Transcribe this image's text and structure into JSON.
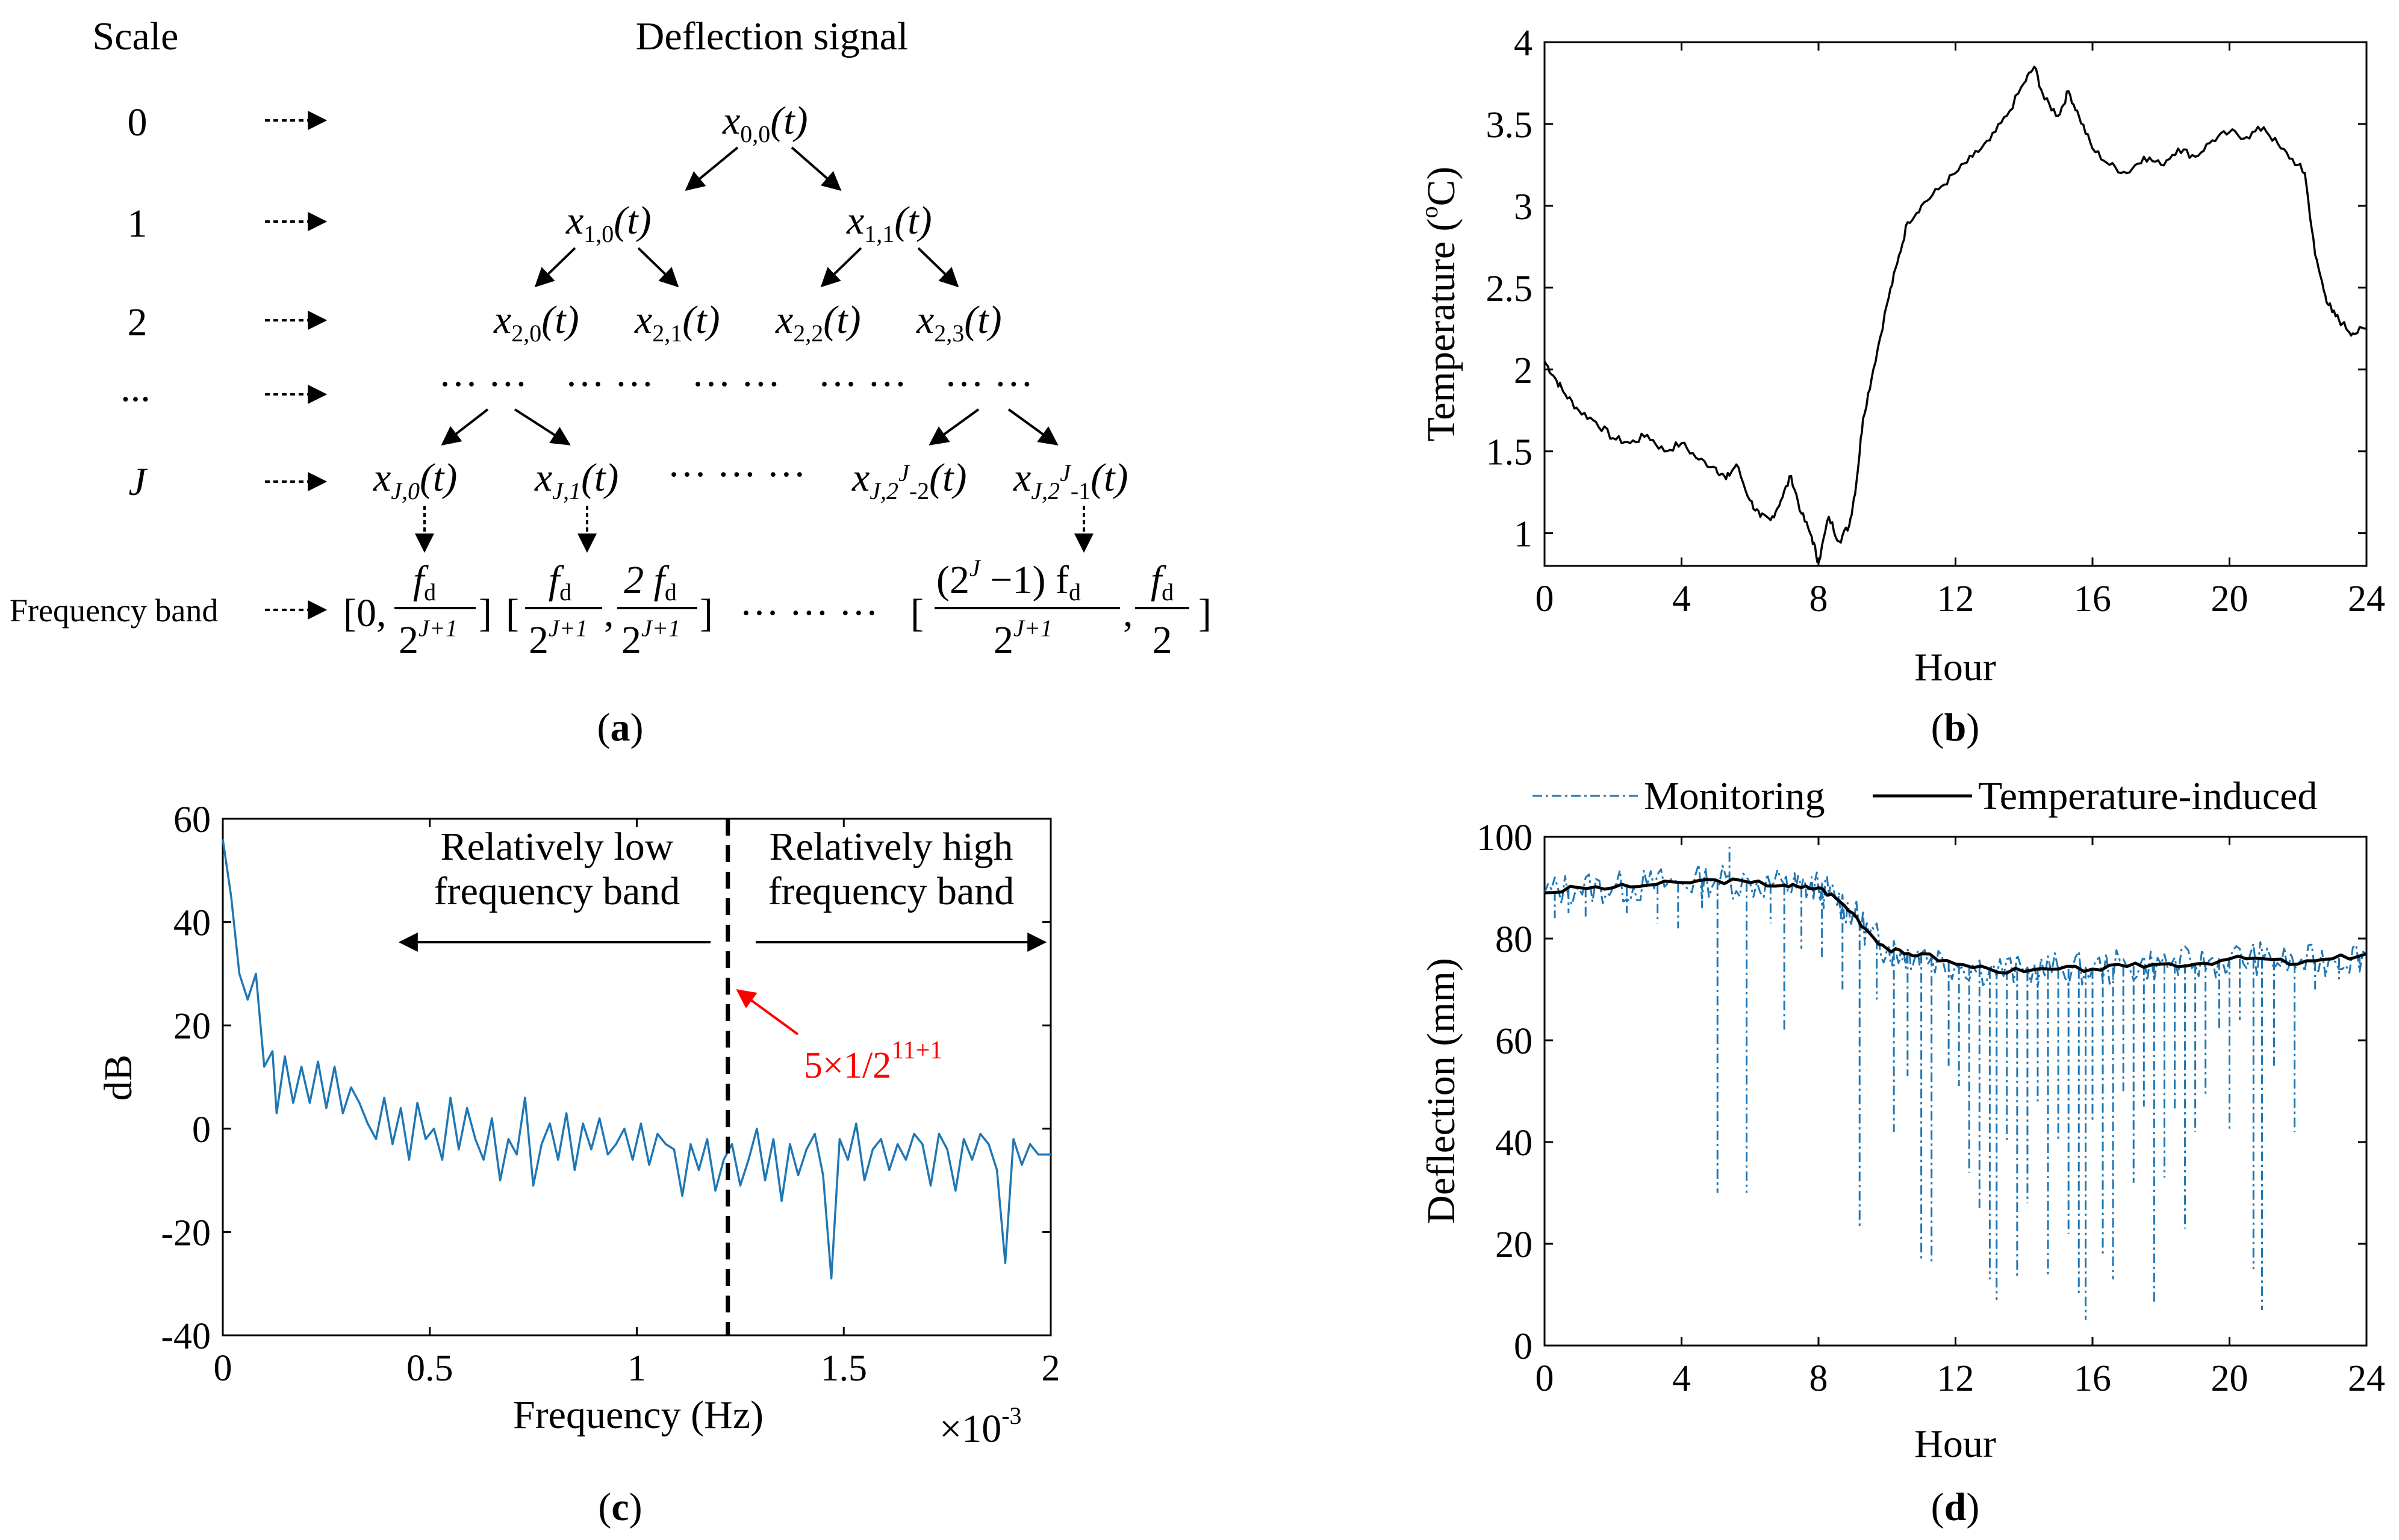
{
  "panel_a": {
    "caption": "(a)",
    "caption_letter": "a",
    "scale_header": "Scale",
    "signal_header": "Deflection signal",
    "scale_labels": [
      "0",
      "1",
      "2",
      "...",
      "J"
    ],
    "freq_band_label": "Frequency band",
    "nodes": {
      "n00": {
        "base": "x",
        "sub": "0,0",
        "arg": "(t)"
      },
      "n10": {
        "base": "x",
        "sub": "1,0",
        "arg": "(t)"
      },
      "n11": {
        "base": "x",
        "sub": "1,1",
        "arg": "(t)"
      },
      "n20": {
        "base": "x",
        "sub": "2,0",
        "arg": "(t)"
      },
      "n21": {
        "base": "x",
        "sub": "2,1",
        "arg": "(t)"
      },
      "n22": {
        "base": "x",
        "sub": "2,2",
        "arg": "(t)"
      },
      "n23": {
        "base": "x",
        "sub": "2,3",
        "arg": "(t)"
      },
      "nJ0": {
        "base": "x",
        "sub": "J,0",
        "arg": "(t)"
      },
      "nJ1": {
        "base": "x",
        "sub": "J,1",
        "arg": "(t)"
      },
      "nJ2": {
        "base": "x",
        "sub": "J,2",
        "sup": "J",
        "tail": "-2",
        "arg": "(t)"
      },
      "nJ3": {
        "base": "x",
        "sub": "J,2",
        "sup": "J",
        "tail": "-1",
        "arg": "(t)"
      }
    },
    "dots": "··· ···",
    "bands": {
      "b1_open": "[0,",
      "b1_num": "f",
      "b1_num_sub": "d",
      "b1_den": "2",
      "b1_den_sup": "J+1",
      "b1_close": "]",
      "b2_open": "[",
      "b2_num_left": "f",
      "b2_num_left_sub": "d",
      "b2_den_left": "2",
      "b2_den_left_sup": "J+1",
      "comma": ",",
      "b2_num_right": "2 f",
      "b2_num_right_sub": "d",
      "b2_den_right": "2",
      "b2_den_right_sup": "J+1",
      "b2_close": "]",
      "ellipsis": "··· ··· ···",
      "b3_open": "[",
      "b3_num": "(2",
      "b3_num_sup": "J",
      "b3_num_rest": " −1) f",
      "b3_num_sub": "d",
      "b3_den": "2",
      "b3_den_sup": "J+1",
      "b3_comma": ",",
      "b3_num2": "f",
      "b3_num2_sub": "d",
      "b3_den2": "2",
      "b3_close": "]"
    }
  },
  "chart_data": [
    {
      "id": "b",
      "type": "line",
      "caption": "(b)",
      "caption_letter": "b",
      "xlabel": "Hour",
      "ylabel": "Temperature (",
      "ylabel_sup": "o",
      "ylabel_unit": "C)",
      "xlim": [
        0,
        24
      ],
      "ylim": [
        0.8,
        4
      ],
      "xticks": [
        0,
        4,
        8,
        12,
        16,
        20,
        24
      ],
      "yticks": [
        1,
        1.5,
        2,
        2.5,
        3,
        3.5,
        4
      ],
      "ytick_labels": [
        "1",
        "1.5",
        "2",
        "2.5",
        "3",
        "3.5",
        "4"
      ],
      "series": [
        {
          "name": "Temperature",
          "color": "#000000",
          "x": [
            0,
            0.3,
            0.6,
            1,
            1.5,
            2,
            2.5,
            3,
            3.5,
            4,
            4.5,
            5,
            5.3,
            5.6,
            6,
            6.3,
            6.6,
            6.9,
            7.2,
            7.5,
            7.8,
            8,
            8.3,
            8.6,
            8.9,
            9.1,
            9.3,
            9.6,
            10,
            10.3,
            10.6,
            11,
            11.5,
            12,
            12.5,
            13,
            13.5,
            14,
            14.3,
            14.6,
            15,
            15.3,
            15.6,
            16,
            16.5,
            17,
            17.5,
            18,
            18.5,
            19,
            19.5,
            20,
            20.5,
            21,
            21.5,
            22,
            22.2,
            22.5,
            22.8,
            23,
            23.3,
            23.6,
            24
          ],
          "y": [
            2.05,
            1.95,
            1.85,
            1.75,
            1.68,
            1.58,
            1.55,
            1.6,
            1.5,
            1.55,
            1.45,
            1.4,
            1.33,
            1.42,
            1.2,
            1.1,
            1.08,
            1.2,
            1.35,
            1.12,
            0.98,
            0.82,
            1.1,
            0.95,
            1.05,
            1.3,
            1.7,
            2.0,
            2.4,
            2.65,
            2.9,
            3.0,
            3.1,
            3.2,
            3.3,
            3.4,
            3.55,
            3.75,
            3.85,
            3.65,
            3.55,
            3.7,
            3.55,
            3.35,
            3.25,
            3.2,
            3.3,
            3.25,
            3.35,
            3.3,
            3.4,
            3.45,
            3.42,
            3.48,
            3.35,
            3.25,
            3.2,
            2.7,
            2.45,
            2.35,
            2.28,
            2.22,
            2.25
          ]
        }
      ]
    },
    {
      "id": "c",
      "type": "line",
      "caption": "(c)",
      "caption_letter": "c",
      "xlabel": "Frequency (Hz)",
      "ylabel": "dB",
      "x_multiplier": "×10",
      "x_multiplier_exp": "-3",
      "xlim": [
        0,
        2
      ],
      "ylim": [
        -40,
        60
      ],
      "xticks": [
        0,
        0.5,
        1,
        1.5,
        2
      ],
      "xtick_labels": [
        "0",
        "0.5",
        "1",
        "1.5",
        "2"
      ],
      "yticks": [
        -40,
        -20,
        0,
        20,
        40,
        60
      ],
      "ytick_labels": [
        "-40",
        "-20",
        "0",
        "20",
        "40",
        "60"
      ],
      "divider_x": 1.22,
      "annotations": {
        "low_line1": "Relatively low",
        "low_line2": "frequency band",
        "high_line1": "Relatively high",
        "high_line2": "frequency band",
        "cutoff_text": "5×1/2",
        "cutoff_exp": "11+1",
        "cutoff_color": "#ff0000"
      },
      "series": [
        {
          "name": "Spectrum",
          "color": "#1f77b4",
          "x": [
            0,
            0.02,
            0.04,
            0.06,
            0.08,
            0.1,
            0.12,
            0.13,
            0.15,
            0.17,
            0.19,
            0.21,
            0.23,
            0.25,
            0.27,
            0.29,
            0.31,
            0.33,
            0.35,
            0.37,
            0.39,
            0.41,
            0.43,
            0.45,
            0.47,
            0.49,
            0.51,
            0.53,
            0.55,
            0.57,
            0.59,
            0.61,
            0.63,
            0.65,
            0.67,
            0.69,
            0.71,
            0.73,
            0.75,
            0.77,
            0.79,
            0.81,
            0.83,
            0.85,
            0.87,
            0.89,
            0.91,
            0.93,
            0.95,
            0.97,
            0.99,
            1.01,
            1.03,
            1.05,
            1.07,
            1.09,
            1.11,
            1.13,
            1.15,
            1.17,
            1.19,
            1.21,
            1.23,
            1.25,
            1.27,
            1.29,
            1.31,
            1.33,
            1.35,
            1.37,
            1.39,
            1.41,
            1.43,
            1.45,
            1.47,
            1.49,
            1.51,
            1.53,
            1.55,
            1.57,
            1.59,
            1.61,
            1.63,
            1.65,
            1.67,
            1.69,
            1.71,
            1.73,
            1.75,
            1.77,
            1.79,
            1.81,
            1.83,
            1.85,
            1.87,
            1.89,
            1.91,
            1.93,
            1.95,
            1.97,
            2.0
          ],
          "y": [
            56,
            45,
            30,
            25,
            30,
            12,
            15,
            3,
            14,
            5,
            12,
            5,
            13,
            4,
            12,
            3,
            8,
            5,
            1,
            -2,
            6,
            -3,
            4,
            -6,
            5,
            -2,
            0,
            -6,
            6,
            -4,
            4,
            -2,
            -6,
            2,
            -10,
            -2,
            -5,
            6,
            -11,
            -3,
            1,
            -6,
            3,
            -8,
            1,
            -4,
            2,
            -5,
            -3,
            0,
            -6,
            1,
            -7,
            -1,
            -3,
            -4,
            -13,
            -3,
            -8,
            -2,
            -12,
            -6,
            -3,
            -11,
            -6,
            0,
            -10,
            -2,
            -14,
            -3,
            -9,
            -4,
            -1,
            -9,
            -29,
            -2,
            -6,
            1,
            -10,
            -4,
            -2,
            -8,
            -3,
            -6,
            -1,
            -3,
            -11,
            -1,
            -4,
            -12,
            -2,
            -6,
            -1,
            -3,
            -8,
            -26,
            -2,
            -7,
            -3,
            -5,
            -5
          ]
        }
      ]
    },
    {
      "id": "d",
      "type": "line",
      "caption": "(d)",
      "caption_letter": "d",
      "xlabel": "Hour",
      "ylabel": "Deflection (mm)",
      "xlim": [
        0,
        24
      ],
      "ylim": [
        0,
        100
      ],
      "xticks": [
        0,
        4,
        8,
        12,
        16,
        20,
        24
      ],
      "yticks": [
        0,
        20,
        40,
        60,
        80,
        100
      ],
      "ytick_labels": [
        "0",
        "20",
        "40",
        "60",
        "80",
        "100"
      ],
      "legend": [
        {
          "label": "Monitoring",
          "color": "#1f77b4",
          "style": "dash-dot"
        },
        {
          "label": "Temperature-induced",
          "color": "#000000",
          "style": "solid"
        }
      ],
      "series": [
        {
          "name": "Temperature-induced",
          "color": "#000000",
          "x": [
            0,
            1,
            2,
            3,
            4,
            5,
            6,
            7,
            7.5,
            8,
            8.5,
            9,
            9.5,
            10,
            10.5,
            11,
            12,
            13,
            14,
            15,
            16,
            17,
            18,
            19,
            20,
            21,
            22,
            23,
            24
          ],
          "y": [
            89,
            90,
            90,
            90.5,
            91,
            91.5,
            91,
            90.5,
            90,
            90,
            88,
            85,
            81,
            78,
            77,
            77,
            75,
            74,
            73.5,
            74,
            74,
            74.5,
            75,
            75,
            76,
            76,
            75,
            76,
            77
          ]
        },
        {
          "name": "Monitoring",
          "color": "#1f77b4",
          "base_x": [
            0,
            1,
            2,
            3,
            4,
            5,
            6,
            7,
            7.5,
            8,
            8.5,
            9,
            9.5,
            10,
            10.5,
            11,
            12,
            13,
            14,
            15,
            16,
            17,
            18,
            19,
            20,
            21,
            22,
            23,
            24
          ],
          "base_y": [
            89,
            90,
            90,
            90.5,
            91,
            91.5,
            91,
            90.5,
            90,
            90,
            88,
            85,
            81,
            78,
            77,
            77,
            75,
            74,
            73.5,
            74,
            74,
            74.5,
            75,
            75,
            76,
            76,
            75,
            76,
            77
          ],
          "spikes": [
            [
              0.3,
              84
            ],
            [
              0.7,
              85
            ],
            [
              1.2,
              84
            ],
            [
              2.4,
              85
            ],
            [
              3.3,
              83
            ],
            [
              3.9,
              82
            ],
            [
              4.6,
              86
            ],
            [
              5.05,
              30
            ],
            [
              5.4,
              98
            ],
            [
              5.9,
              30
            ],
            [
              6.6,
              83
            ],
            [
              7.0,
              62
            ],
            [
              7.5,
              78
            ],
            [
              8.1,
              76
            ],
            [
              8.7,
              70
            ],
            [
              9.2,
              23
            ],
            [
              9.7,
              68
            ],
            [
              10.2,
              42
            ],
            [
              10.6,
              53
            ],
            [
              11.0,
              17
            ],
            [
              11.3,
              16
            ],
            [
              11.8,
              55
            ],
            [
              12.1,
              51
            ],
            [
              12.4,
              34
            ],
            [
              12.7,
              27
            ],
            [
              13.0,
              13
            ],
            [
              13.2,
              9
            ],
            [
              13.5,
              40
            ],
            [
              13.8,
              13
            ],
            [
              14.1,
              28
            ],
            [
              14.4,
              48
            ],
            [
              14.7,
              14
            ],
            [
              15.0,
              40
            ],
            [
              15.3,
              22
            ],
            [
              15.6,
              10
            ],
            [
              15.8,
              5
            ],
            [
              16.0,
              44
            ],
            [
              16.3,
              18
            ],
            [
              16.6,
              13
            ],
            [
              16.9,
              50
            ],
            [
              17.2,
              32
            ],
            [
              17.5,
              47
            ],
            [
              17.8,
              8
            ],
            [
              18.1,
              33
            ],
            [
              18.4,
              46
            ],
            [
              18.7,
              23
            ],
            [
              19.0,
              42
            ],
            [
              19.3,
              49
            ],
            [
              19.7,
              62
            ],
            [
              20.0,
              42
            ],
            [
              20.3,
              64
            ],
            [
              20.7,
              15
            ],
            [
              20.95,
              7
            ],
            [
              21.3,
              55
            ],
            [
              21.9,
              42
            ],
            [
              22.5,
              70
            ],
            [
              23.2,
              72
            ],
            [
              23.8,
              74
            ]
          ]
        }
      ]
    }
  ]
}
